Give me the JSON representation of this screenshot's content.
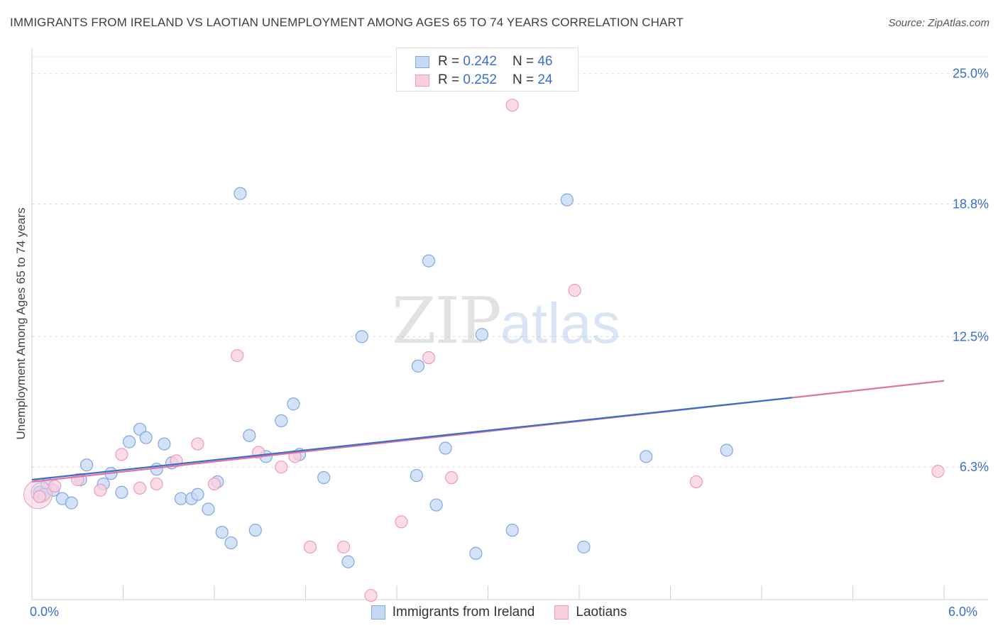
{
  "header": {
    "title": "IMMIGRANTS FROM IRELAND VS LAOTIAN UNEMPLOYMENT AMONG AGES 65 TO 74 YEARS CORRELATION CHART",
    "source": "Source: ZipAtlas.com"
  },
  "watermark": {
    "zip": "ZIP",
    "atlas": "atlas"
  },
  "legend_top": [
    {
      "r_label": "R =",
      "r_value": "0.242",
      "n_label": "N =",
      "n_value": "46"
    },
    {
      "r_label": "R =",
      "r_value": "0.252",
      "n_label": "N =",
      "n_value": "24"
    }
  ],
  "x_axis": {
    "min_label": "0.0%",
    "max_label": "6.0%"
  },
  "colors": {
    "ireland_fill": "#c5d8f4",
    "ireland_stroke": "#7fa8e0",
    "ireland_line": "#3a6fc9",
    "laotians_fill": "#f9cfe0",
    "laotians_stroke": "#ef9ab8",
    "laotians_line": "#e2739f",
    "tick_text": "#3a6fc9",
    "grid": "#dddddd"
  },
  "chart_data": {
    "type": "scatter",
    "title": "IMMIGRANTS FROM IRELAND VS LAOTIAN UNEMPLOYMENT AMONG AGES 65 TO 74 YEARS CORRELATION CHART",
    "xlabel": "",
    "ylabel": "Unemployment Among Ages 65 to 74 years",
    "xlim": [
      0,
      6.0
    ],
    "ylim": [
      0,
      25.8
    ],
    "y_ticks": [
      6.3,
      12.5,
      18.8,
      25.0
    ],
    "y_tick_labels": [
      "6.3%",
      "12.5%",
      "18.8%",
      "25.0%"
    ],
    "x_tick_labels": [
      "0.0%",
      "6.0%"
    ],
    "series": [
      {
        "name": "Immigrants from Ireland",
        "r": 0.242,
        "n": 46,
        "trend": {
          "x": [
            0.0,
            5.0
          ],
          "y": [
            5.7,
            9.6
          ]
        },
        "points": [
          [
            0.05,
            5.1
          ],
          [
            0.1,
            5.5
          ],
          [
            0.2,
            4.8
          ],
          [
            0.26,
            4.6
          ],
          [
            0.32,
            5.7
          ],
          [
            0.36,
            6.4
          ],
          [
            0.47,
            5.5
          ],
          [
            0.52,
            6.0
          ],
          [
            0.59,
            5.1
          ],
          [
            0.64,
            7.5
          ],
          [
            0.71,
            8.1
          ],
          [
            0.75,
            7.7
          ],
          [
            0.82,
            6.2
          ],
          [
            0.87,
            7.4
          ],
          [
            0.92,
            6.5
          ],
          [
            0.98,
            4.8
          ],
          [
            1.05,
            4.8
          ],
          [
            1.09,
            5.0
          ],
          [
            1.16,
            4.3
          ],
          [
            1.22,
            5.6
          ],
          [
            1.25,
            3.2
          ],
          [
            1.31,
            2.7
          ],
          [
            1.37,
            19.3
          ],
          [
            1.43,
            7.8
          ],
          [
            1.47,
            3.3
          ],
          [
            1.54,
            6.8
          ],
          [
            1.64,
            8.5
          ],
          [
            1.72,
            9.3
          ],
          [
            1.76,
            6.9
          ],
          [
            1.92,
            5.8
          ],
          [
            2.08,
            1.8
          ],
          [
            2.17,
            12.5
          ],
          [
            2.53,
            5.9
          ],
          [
            2.54,
            11.1
          ],
          [
            2.61,
            16.1
          ],
          [
            2.66,
            4.5
          ],
          [
            2.72,
            7.2
          ],
          [
            2.92,
            2.2
          ],
          [
            2.96,
            12.6
          ],
          [
            3.16,
            3.3
          ],
          [
            3.52,
            19.0
          ],
          [
            3.63,
            2.5
          ],
          [
            4.04,
            6.8
          ],
          [
            4.57,
            7.1
          ],
          [
            0.08,
            5.0
          ],
          [
            0.14,
            5.2
          ]
        ]
      },
      {
        "name": "Laotians",
        "r": 0.252,
        "n": 24,
        "trend": {
          "x": [
            0.0,
            6.0
          ],
          "y": [
            5.6,
            10.4
          ]
        },
        "points": [
          [
            0.05,
            4.9
          ],
          [
            0.15,
            5.4
          ],
          [
            0.3,
            5.7
          ],
          [
            0.45,
            5.2
          ],
          [
            0.59,
            6.9
          ],
          [
            0.71,
            5.3
          ],
          [
            0.82,
            5.5
          ],
          [
            0.95,
            6.6
          ],
          [
            1.09,
            7.4
          ],
          [
            1.2,
            5.5
          ],
          [
            1.35,
            11.6
          ],
          [
            1.49,
            7.0
          ],
          [
            1.64,
            6.3
          ],
          [
            1.73,
            6.8
          ],
          [
            1.83,
            2.5
          ],
          [
            2.05,
            2.5
          ],
          [
            2.23,
            0.2
          ],
          [
            2.43,
            3.7
          ],
          [
            2.61,
            11.5
          ],
          [
            2.76,
            5.8
          ],
          [
            3.16,
            23.5
          ],
          [
            3.57,
            14.7
          ],
          [
            4.37,
            5.6
          ],
          [
            5.96,
            6.1
          ]
        ]
      }
    ]
  },
  "bottom_legend": [
    {
      "label": "Immigrants from Ireland"
    },
    {
      "label": "Laotians"
    }
  ]
}
